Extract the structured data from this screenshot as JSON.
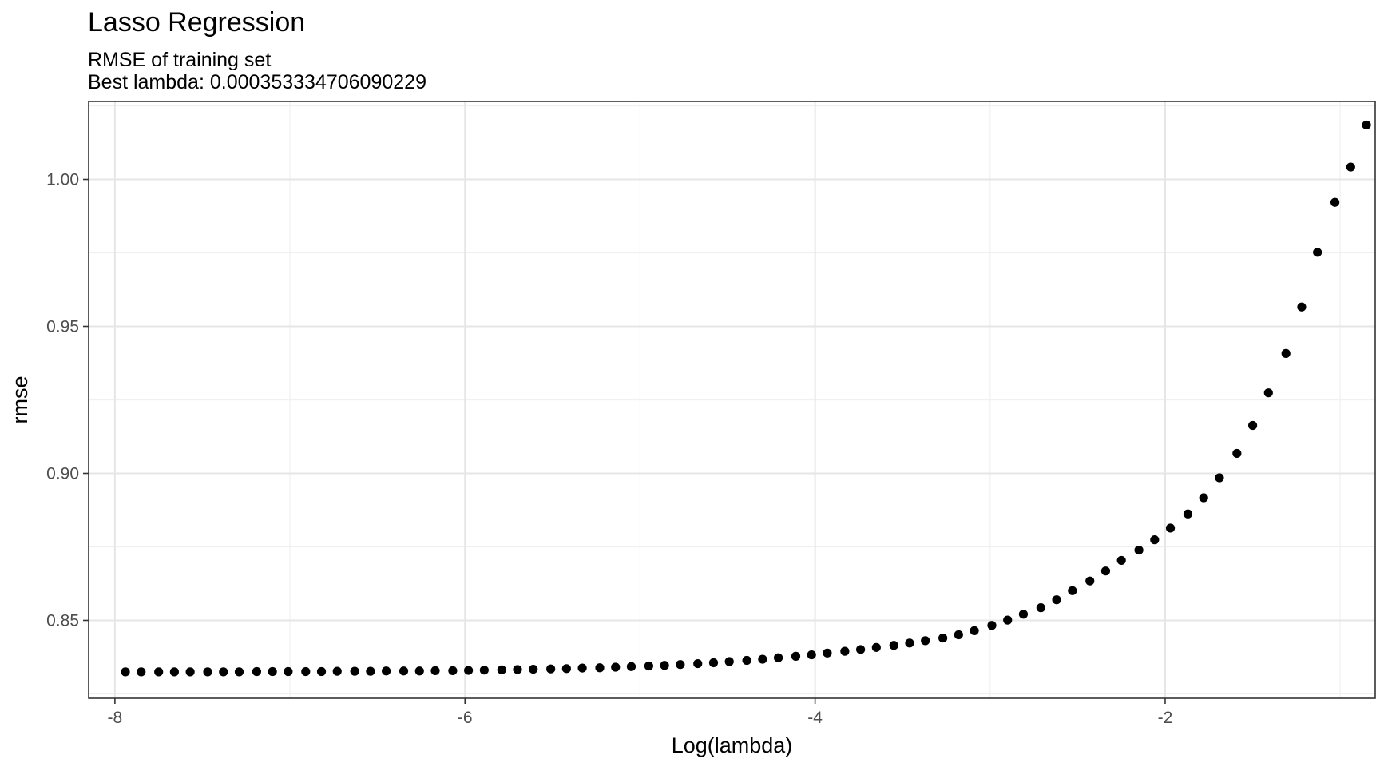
{
  "chart_data": {
    "type": "scatter",
    "title": "Lasso Regression",
    "subtitle_lines": [
      "RMSE of training set",
      "Best lambda: 0.000353334706090229"
    ],
    "xlabel": "Log(lambda)",
    "ylabel": "rmse",
    "xlim": [
      -8.15,
      -0.8
    ],
    "ylim": [
      0.8235,
      1.0265
    ],
    "x_ticks": [
      -8,
      -6,
      -4,
      -2
    ],
    "x_tick_labels": [
      "-8",
      "-6",
      "-4",
      "-2"
    ],
    "y_ticks": [
      0.85,
      0.9,
      0.95,
      1.0
    ],
    "y_tick_labels": [
      "0.85",
      "0.90",
      "0.95",
      "1.00"
    ],
    "grid": true,
    "legend": "none",
    "marker_color": "#000000",
    "points": [
      {
        "x": -7.94,
        "y": 0.8325
      },
      {
        "x": -7.85,
        "y": 0.8325
      },
      {
        "x": -7.75,
        "y": 0.8325
      },
      {
        "x": -7.66,
        "y": 0.8325
      },
      {
        "x": -7.57,
        "y": 0.8325
      },
      {
        "x": -7.47,
        "y": 0.8325
      },
      {
        "x": -7.38,
        "y": 0.8325
      },
      {
        "x": -7.29,
        "y": 0.8325
      },
      {
        "x": -7.19,
        "y": 0.8326
      },
      {
        "x": -7.1,
        "y": 0.8326
      },
      {
        "x": -7.01,
        "y": 0.8326
      },
      {
        "x": -6.91,
        "y": 0.8326
      },
      {
        "x": -6.82,
        "y": 0.8326
      },
      {
        "x": -6.73,
        "y": 0.8327
      },
      {
        "x": -6.63,
        "y": 0.8327
      },
      {
        "x": -6.54,
        "y": 0.8327
      },
      {
        "x": -6.45,
        "y": 0.8328
      },
      {
        "x": -6.35,
        "y": 0.8328
      },
      {
        "x": -6.26,
        "y": 0.8328
      },
      {
        "x": -6.17,
        "y": 0.8329
      },
      {
        "x": -6.07,
        "y": 0.8329
      },
      {
        "x": -5.98,
        "y": 0.833
      },
      {
        "x": -5.89,
        "y": 0.8331
      },
      {
        "x": -5.79,
        "y": 0.8332
      },
      {
        "x": -5.7,
        "y": 0.8333
      },
      {
        "x": -5.61,
        "y": 0.8334
      },
      {
        "x": -5.51,
        "y": 0.8335
      },
      {
        "x": -5.42,
        "y": 0.8336
      },
      {
        "x": -5.33,
        "y": 0.8338
      },
      {
        "x": -5.23,
        "y": 0.8339
      },
      {
        "x": -5.14,
        "y": 0.8341
      },
      {
        "x": -5.05,
        "y": 0.8343
      },
      {
        "x": -4.95,
        "y": 0.8345
      },
      {
        "x": -4.86,
        "y": 0.8347
      },
      {
        "x": -4.77,
        "y": 0.835
      },
      {
        "x": -4.67,
        "y": 0.8353
      },
      {
        "x": -4.58,
        "y": 0.8356
      },
      {
        "x": -4.49,
        "y": 0.836
      },
      {
        "x": -4.39,
        "y": 0.8364
      },
      {
        "x": -4.3,
        "y": 0.8368
      },
      {
        "x": -4.21,
        "y": 0.8373
      },
      {
        "x": -4.11,
        "y": 0.8378
      },
      {
        "x": -4.02,
        "y": 0.8383
      },
      {
        "x": -3.93,
        "y": 0.8389
      },
      {
        "x": -3.83,
        "y": 0.8395
      },
      {
        "x": -3.74,
        "y": 0.8401
      },
      {
        "x": -3.65,
        "y": 0.8408
      },
      {
        "x": -3.55,
        "y": 0.8415
      },
      {
        "x": -3.46,
        "y": 0.8423
      },
      {
        "x": -3.37,
        "y": 0.8431
      },
      {
        "x": -3.27,
        "y": 0.844
      },
      {
        "x": -3.18,
        "y": 0.8451
      },
      {
        "x": -3.09,
        "y": 0.8465
      },
      {
        "x": -2.99,
        "y": 0.8483
      },
      {
        "x": -2.9,
        "y": 0.8501
      },
      {
        "x": -2.81,
        "y": 0.8521
      },
      {
        "x": -2.71,
        "y": 0.8543
      },
      {
        "x": -2.62,
        "y": 0.857
      },
      {
        "x": -2.53,
        "y": 0.8601
      },
      {
        "x": -2.43,
        "y": 0.8634
      },
      {
        "x": -2.34,
        "y": 0.8668
      },
      {
        "x": -2.25,
        "y": 0.8704
      },
      {
        "x": -2.15,
        "y": 0.8739
      },
      {
        "x": -2.06,
        "y": 0.8774
      },
      {
        "x": -1.97,
        "y": 0.8814
      },
      {
        "x": -1.87,
        "y": 0.8862
      },
      {
        "x": -1.78,
        "y": 0.8917
      },
      {
        "x": -1.69,
        "y": 0.8985
      },
      {
        "x": -1.59,
        "y": 0.9068
      },
      {
        "x": -1.5,
        "y": 0.9163
      },
      {
        "x": -1.41,
        "y": 0.9274
      },
      {
        "x": -1.31,
        "y": 0.9408
      },
      {
        "x": -1.22,
        "y": 0.9566
      },
      {
        "x": -1.13,
        "y": 0.9752
      },
      {
        "x": -1.03,
        "y": 0.9922
      },
      {
        "x": -0.94,
        "y": 1.0042
      },
      {
        "x": -0.85,
        "y": 1.0185
      }
    ]
  }
}
